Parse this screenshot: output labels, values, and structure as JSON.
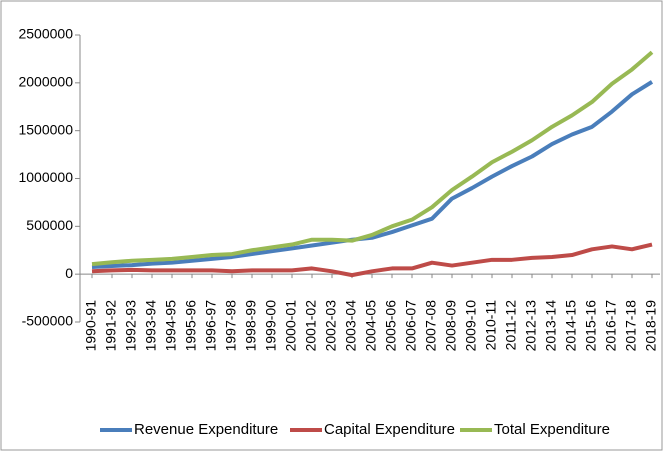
{
  "chart_data": {
    "type": "line",
    "categories": [
      "1990-91",
      "1991-92",
      "1992-93",
      "1993-94",
      "1994-95",
      "1995-96",
      "1996-97",
      "1997-98",
      "1998-99",
      "1999-00",
      "2000-01",
      "2001-02",
      "2002-03",
      "2003-04",
      "2004-05",
      "2005-06",
      "2006-07",
      "2007-08",
      "2008-09",
      "2009-10",
      "2010-11",
      "2011-12",
      "2012-13",
      "2013-14",
      "2014-15",
      "2015-16",
      "2016-17",
      "2017-18",
      "2018-19"
    ],
    "series": [
      {
        "name": "Revenue Expenditure",
        "color": "#4a7ebb",
        "values": [
          75000,
          85000,
          95000,
          110000,
          120000,
          140000,
          160000,
          180000,
          210000,
          240000,
          270000,
          300000,
          330000,
          360000,
          380000,
          440000,
          510000,
          580000,
          790000,
          900000,
          1020000,
          1130000,
          1230000,
          1360000,
          1460000,
          1540000,
          1700000,
          1880000,
          2010000
        ]
      },
      {
        "name": "Capital Expenditure",
        "color": "#be4b48",
        "values": [
          30000,
          40000,
          45000,
          40000,
          40000,
          40000,
          40000,
          30000,
          40000,
          40000,
          40000,
          60000,
          30000,
          -10000,
          30000,
          60000,
          60000,
          120000,
          90000,
          120000,
          150000,
          150000,
          170000,
          180000,
          200000,
          260000,
          290000,
          260000,
          310000
        ]
      },
      {
        "name": "Total Expenditure",
        "color": "#98b954",
        "values": [
          105000,
          125000,
          140000,
          150000,
          160000,
          180000,
          200000,
          210000,
          250000,
          280000,
          310000,
          360000,
          360000,
          350000,
          410000,
          500000,
          570000,
          700000,
          880000,
          1020000,
          1170000,
          1280000,
          1400000,
          1540000,
          1660000,
          1800000,
          1990000,
          2140000,
          2320000
        ]
      }
    ],
    "ylim": [
      -500000,
      2500000
    ],
    "yticks": [
      -500000,
      0,
      500000,
      1000000,
      1500000,
      2000000,
      2500000
    ],
    "grid": false
  }
}
